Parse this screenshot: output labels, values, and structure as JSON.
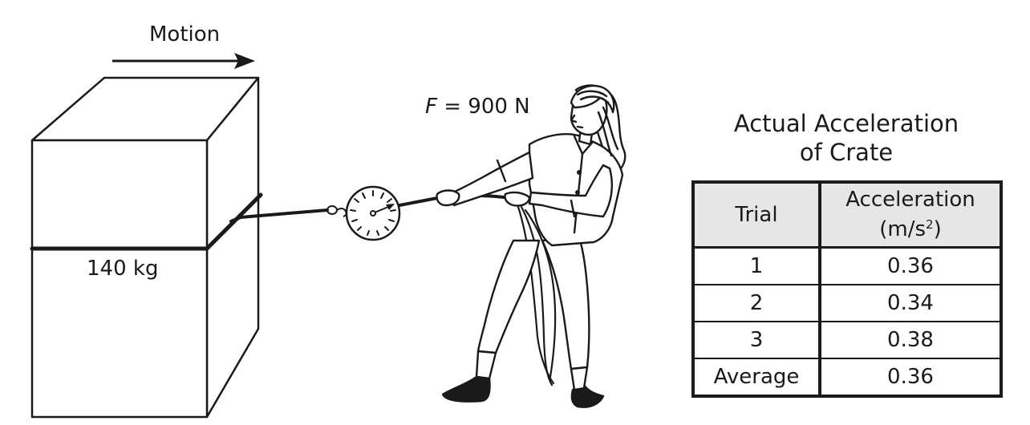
{
  "motion_label": "Motion",
  "mass_label": "140 kg",
  "force": {
    "symbol": "F",
    "rest": " = 900 N"
  },
  "table": {
    "title_line1": "Actual Acceleration",
    "title_line2": "of Crate",
    "col_trial": "Trial",
    "col_accel_line1": "Acceleration",
    "col_accel_unit_base": "(m/s",
    "col_accel_unit_sup": "2",
    "col_accel_unit_close": ")",
    "rows": [
      {
        "trial": "1",
        "accel": "0.36"
      },
      {
        "trial": "2",
        "accel": "0.34"
      },
      {
        "trial": "3",
        "accel": "0.38"
      },
      {
        "trial": "Average",
        "accel": "0.36"
      }
    ]
  },
  "colors": {
    "ink": "#1a1a1a",
    "header_fill": "#e6e6e6",
    "background": "#ffffff"
  }
}
